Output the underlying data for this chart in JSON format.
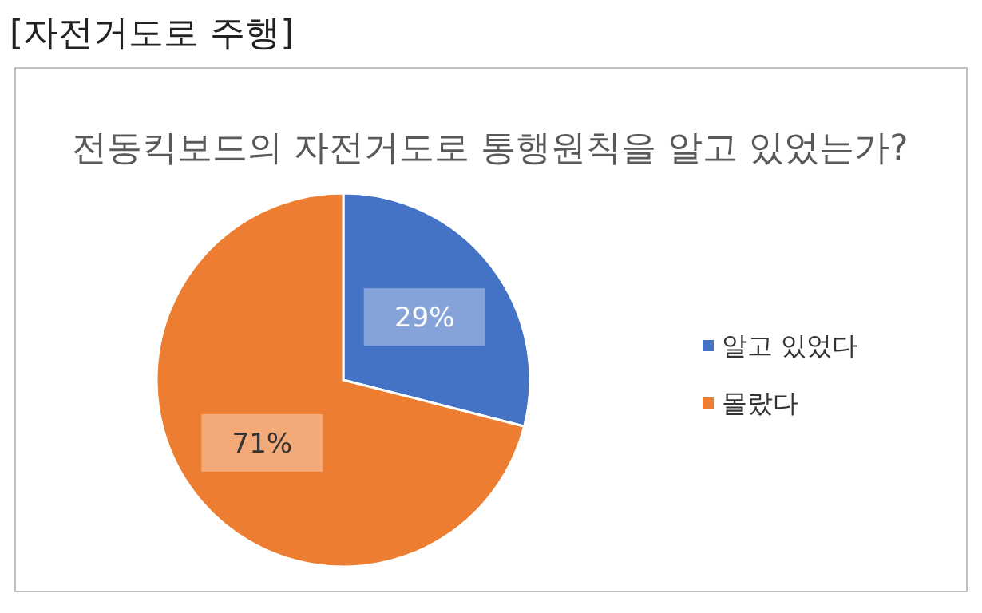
{
  "chart_data": {
    "type": "pie",
    "title": "[자전거도로 주행]",
    "subtitle": "전동킥보드의 자전거도로 통행원칙을 알고 있었는가?",
    "categories": [
      "알고 있었다",
      "몰랐다"
    ],
    "values": [
      29,
      71
    ],
    "value_labels": [
      "29%",
      "71%"
    ],
    "colors": [
      "#4472c4",
      "#ed7d31"
    ],
    "legend": "right"
  }
}
